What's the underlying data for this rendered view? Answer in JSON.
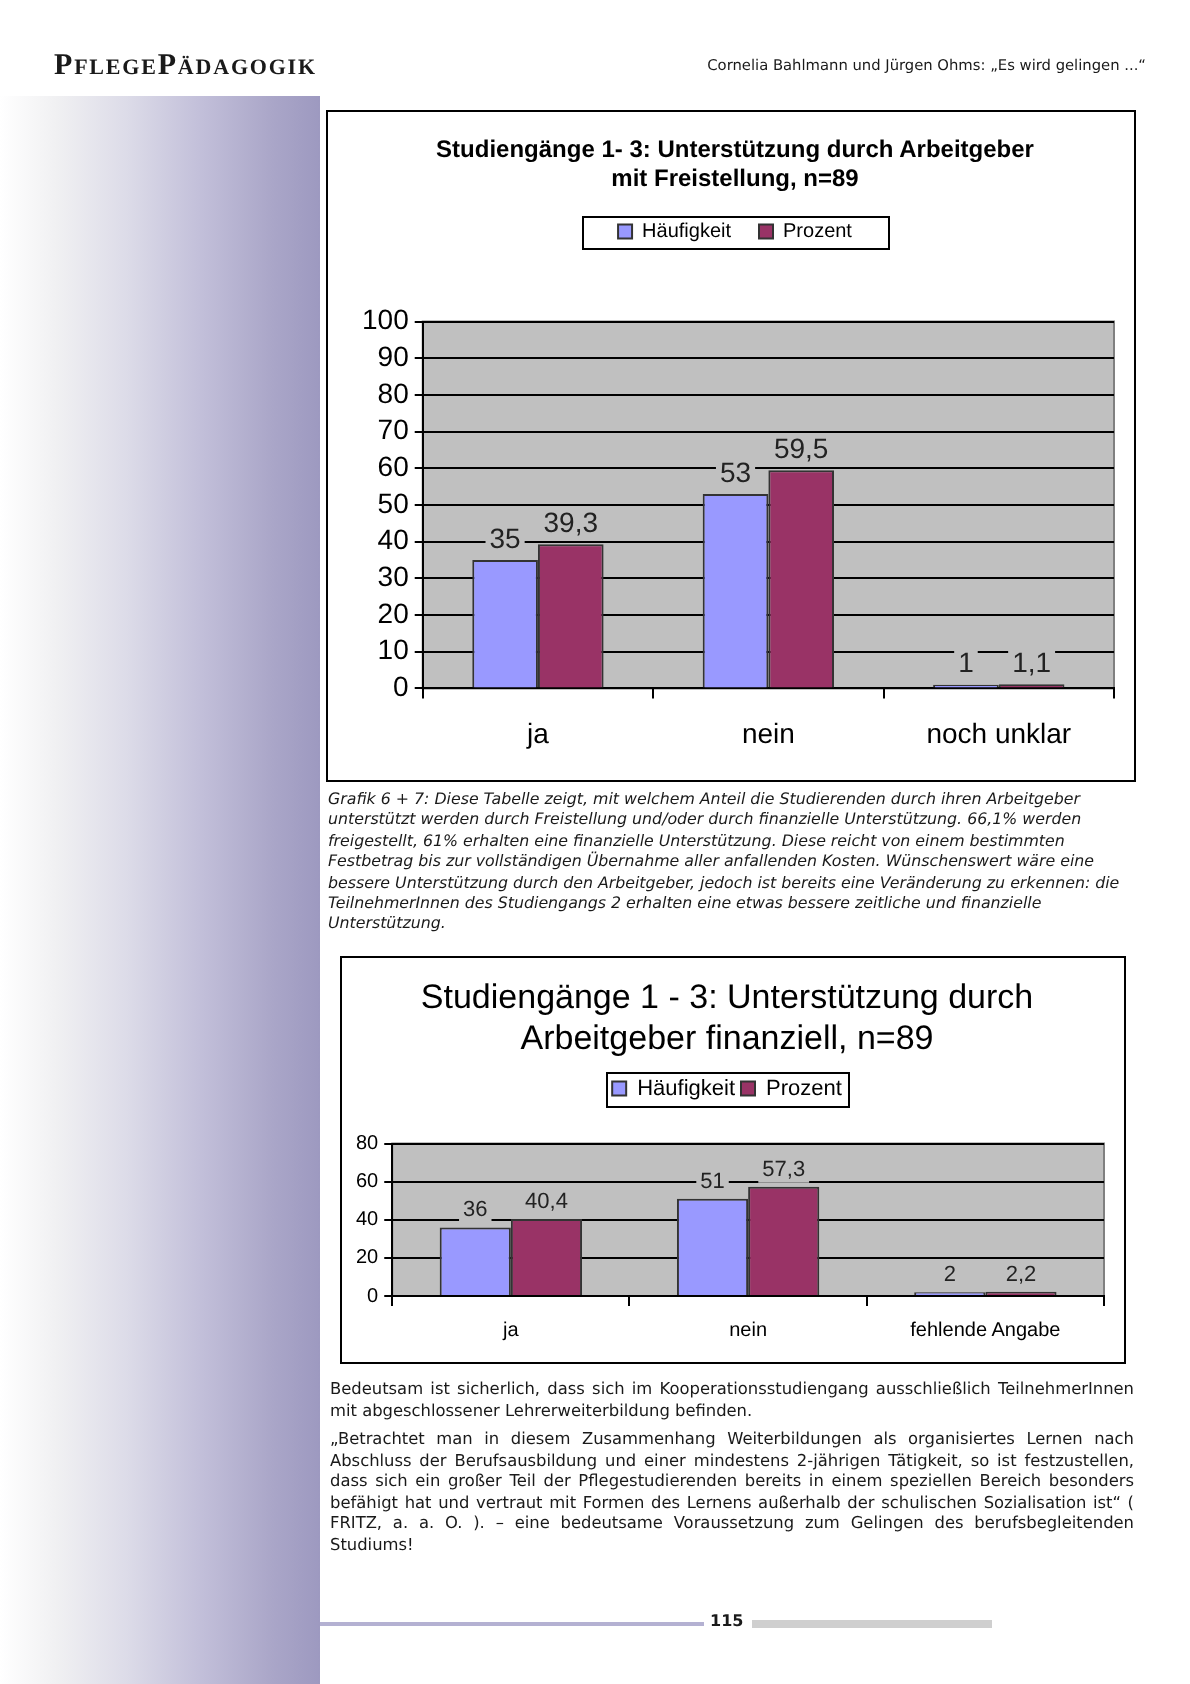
{
  "chart_data": [
    {
      "type": "bar",
      "title": "Studiengänge 1- 3: Unterstützung durch Arbeitgeber mit Freistellung, n=89",
      "categories": [
        "ja",
        "nein",
        "noch unklar"
      ],
      "series": [
        {
          "name": "Häufigkeit",
          "color": "#9999ff",
          "values": [
            35,
            53,
            1
          ],
          "value_labels": [
            "35",
            "53",
            "1"
          ]
        },
        {
          "name": "Prozent",
          "color": "#993366",
          "values": [
            39.3,
            59.5,
            1.1
          ],
          "value_labels": [
            "39,3",
            "59,5",
            "1,1"
          ]
        }
      ],
      "ylim": [
        0,
        100
      ],
      "yticks": [
        0,
        10,
        20,
        30,
        40,
        50,
        60,
        70,
        80,
        90,
        100
      ],
      "grid": "y",
      "legend": "top",
      "annotations": [
        "PflegePädagogik",
        "Cornelia Bahlmann und Jürgen Ohms: „Es wird gelingen ...“",
        "Grafik 6 + 7: Diese Tabelle zeigt, mit welchem Anteil die Studierenden durch ihren Arbeitgeber unterstützt werden durch Freistellung und/oder durch finanzielle Unterstützung. 66,1% werden freigestellt, 61% erhalten eine finanzielle Unterstützung. Diese reicht von einem bestimmten Festbetrag bis zur vollständigen Übernahme aller anfallenden Kosten. Wünschenswert wäre eine bessere Unterstützung durch den Arbeitgeber, jedoch ist bereits eine Veränderung zu erkennen: die TeilnehmerInnen des Studiengangs 2 erhalten eine etwas bessere zeitliche und finanzielle Unterstützung."
      ]
    },
    {
      "type": "bar",
      "title": "Studiengänge 1 - 3: Unterstützung durch Arbeitgeber finanziell, n=89",
      "categories": [
        "ja",
        "nein",
        "fehlende Angabe"
      ],
      "series": [
        {
          "name": "Häufigkeit",
          "color": "#9999ff",
          "values": [
            36,
            51,
            2
          ],
          "value_labels": [
            "36",
            "51",
            "2"
          ]
        },
        {
          "name": "Prozent",
          "color": "#993366",
          "values": [
            40.4,
            57.3,
            2.2
          ],
          "value_labels": [
            "40,4",
            "57,3",
            "2,2"
          ]
        }
      ],
      "ylim": [
        0,
        80
      ],
      "yticks": [
        0,
        20,
        40,
        60,
        80
      ],
      "grid": "y",
      "legend": "top",
      "annotations": [
        "Bedeutsam ist sicherlich, dass sich im Kooperationsstudiengang ausschließlich TeilnehmerInnen mit abgeschlossener Lehrerweiterbildung befinden.",
        "„Betrachtet man in diesem Zusammenhang Weiterbildungen als organisiertes Lernen nach Abschluss der Berufsausbildung und einer mindestens 2-jährigen Tätigkeit, so ist festzustellen, dass sich ein großer Teil der Pflegestudierenden bereits in einem speziellen Bereich besonders befähigt hat und vertraut mit Formen des Lernens außerhalb der schulischen Sozialisation ist“ ( FRITZ, a. a. O. ). – eine bedeutsame Voraussetzung zum Gelingen des berufsbegleitenden Studiums!",
        "115"
      ]
    }
  ]
}
